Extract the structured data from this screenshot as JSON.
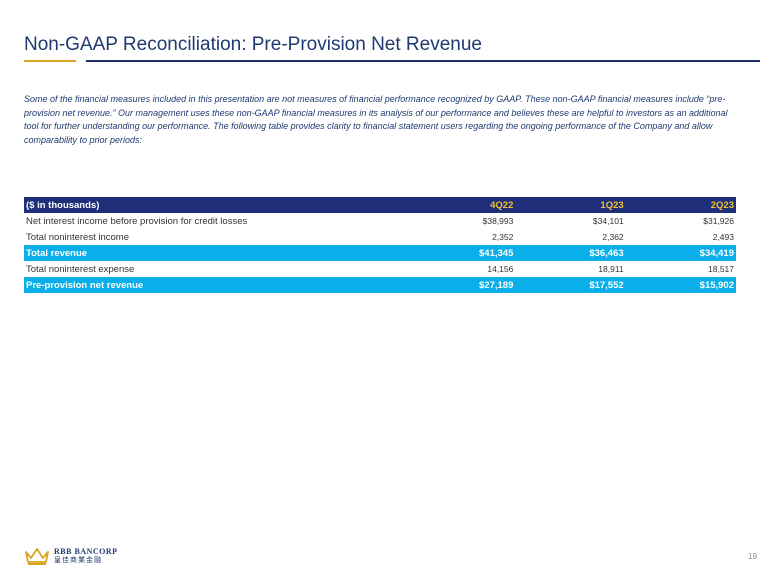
{
  "title": "Non-GAAP Reconciliation: Pre-Provision Net Revenue",
  "intro": "Some of the financial measures included in this presentation are not measures of financial performance recognized by GAAP. These non-GAAP financial measures include “pre-provision net revenue.” Our management uses these non-GAAP financial measures in its analysis of our performance and believes these are helpful to investors as an additional tool for further understanding our performance. The following table provides clarity to financial statement users regarding the ongoing performance of the Company and allow comparability to prior periods:",
  "table": {
    "header": {
      "label": "($ in thousands)",
      "periods": [
        "4Q22",
        "1Q23",
        "2Q23"
      ]
    },
    "rows": [
      {
        "label": "Net interest income before provision for credit losses",
        "values": [
          "$38,993",
          "$34,101",
          "$31,926"
        ],
        "highlight": false
      },
      {
        "label": "Total noninterest income",
        "values": [
          "2,352",
          "2,362",
          "2,493"
        ],
        "highlight": false
      },
      {
        "label": "Total revenue",
        "values": [
          "$41,345",
          "$36,463",
          "$34,419"
        ],
        "highlight": true
      },
      {
        "label": "Total noninterest expense",
        "values": [
          "14,156",
          "18,911",
          "18,517"
        ],
        "highlight": false
      },
      {
        "label": "Pre-provision net revenue",
        "values": [
          "$27,189",
          "$17,552",
          "$15,902"
        ],
        "highlight": true
      }
    ]
  },
  "footer": {
    "logo_name": "RBB BANCORP",
    "logo_sub": "皇佳商業金融",
    "logo_icon": "crown-icon",
    "page_number": "19"
  },
  "colors": {
    "title": "#1f3a6e",
    "gold_rule": "#d9a520",
    "navy": "#1f2f7a",
    "highlight": "#0aaee8",
    "period_header": "#f2c12e"
  }
}
